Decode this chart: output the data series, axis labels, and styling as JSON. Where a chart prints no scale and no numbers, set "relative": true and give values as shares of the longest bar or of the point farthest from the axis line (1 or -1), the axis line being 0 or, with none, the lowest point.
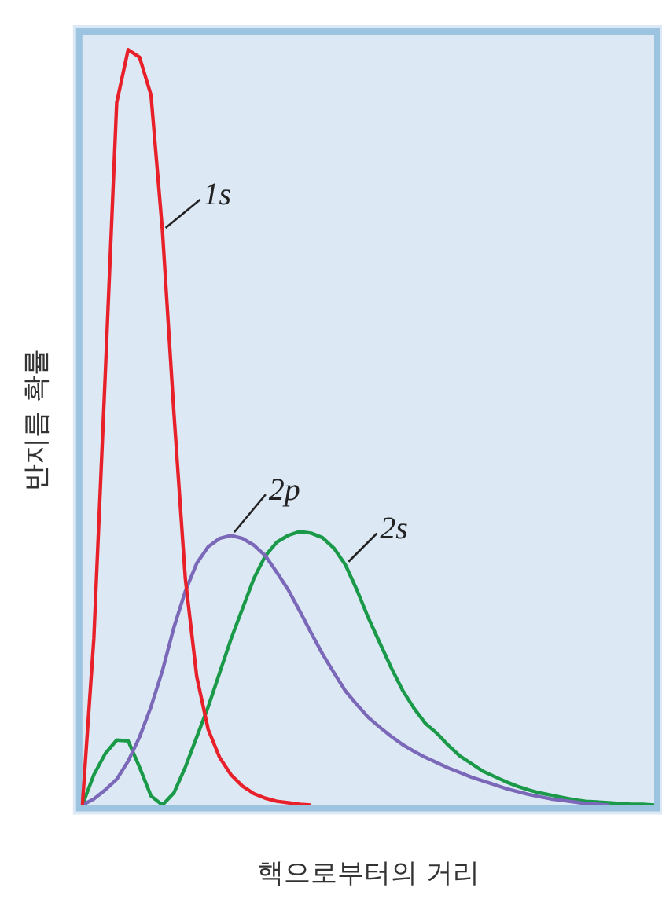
{
  "chart_data": {
    "type": "line",
    "relative": true,
    "xlabel": "핵으로부터의 거리",
    "ylabel": "반지름 확률",
    "legend": false,
    "marker": "none",
    "line_style": "solid",
    "categories": [
      null,
      null,
      null,
      null,
      null,
      null,
      null,
      null,
      null,
      null,
      null,
      null,
      null,
      null,
      null,
      null,
      null,
      null,
      null,
      null,
      null,
      null,
      null,
      null,
      null,
      null,
      null,
      null,
      null,
      null,
      null,
      null,
      null,
      null,
      null,
      null,
      null,
      null,
      null,
      null,
      null,
      null,
      null,
      null,
      null,
      null,
      null,
      null,
      null,
      null,
      null
    ],
    "series": [
      {
        "name": "1s",
        "color": "#e8202a",
        "values": [
          0,
          0.22,
          0.57,
          0.93,
          1,
          0.99,
          0.94,
          0.76,
          0.52,
          0.3,
          0.17,
          0.1,
          0.063,
          0.04,
          0.025,
          0.015,
          0.009,
          0.005,
          0.003,
          0.001,
          0,
          null,
          null,
          null,
          null,
          null,
          null,
          null,
          null,
          null,
          null,
          null,
          null,
          null,
          null,
          null,
          null,
          null,
          null,
          null,
          null,
          null,
          null,
          null,
          null,
          null,
          null,
          null,
          null,
          null,
          null
        ]
      },
      {
        "name": "2p",
        "color": "#7b68b8",
        "values": [
          0,
          0.008,
          0.02,
          0.034,
          0.058,
          0.09,
          0.13,
          0.178,
          0.235,
          0.283,
          0.32,
          0.342,
          0.353,
          0.357,
          0.353,
          0.344,
          0.33,
          0.308,
          0.285,
          0.257,
          0.228,
          0.2,
          0.175,
          0.151,
          0.133,
          0.116,
          0.103,
          0.091,
          0.08,
          0.071,
          0.063,
          0.056,
          0.049,
          0.043,
          0.037,
          0.032,
          0.027,
          0.022,
          0.018,
          0.014,
          0.011,
          0.008,
          0.006,
          0.004,
          0.002,
          0.001,
          0,
          null,
          null,
          null,
          null
        ]
      },
      {
        "name": "2s",
        "color": "#1a9a48",
        "values": [
          0,
          0.04,
          0.068,
          0.086,
          0.085,
          0.05,
          0.012,
          0,
          0.016,
          0.05,
          0.09,
          0.13,
          0.175,
          0.22,
          0.26,
          0.3,
          0.33,
          0.348,
          0.357,
          0.362,
          0.36,
          0.354,
          0.34,
          0.318,
          0.285,
          0.248,
          0.215,
          0.182,
          0.152,
          0.128,
          0.108,
          0.095,
          0.079,
          0.065,
          0.055,
          0.045,
          0.038,
          0.031,
          0.025,
          0.02,
          0.016,
          0.013,
          0.01,
          0.007,
          0.005,
          0.004,
          0.003,
          0.002,
          0.001,
          0.001,
          0
        ]
      }
    ]
  }
}
